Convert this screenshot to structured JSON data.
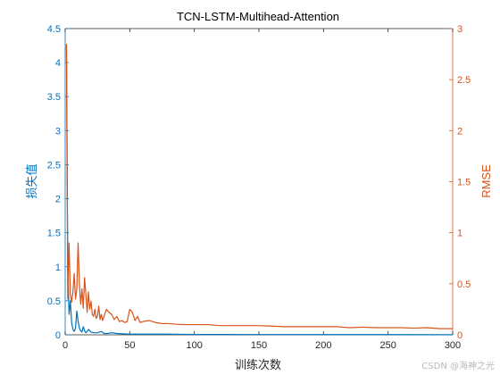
{
  "chart_data": {
    "type": "line",
    "title": "TCN-LSTM-Multihead-Attention",
    "xlabel": "训练次数",
    "ylabel_left": "损失值",
    "ylabel_right": "RMSE",
    "xlim": [
      0,
      300
    ],
    "ylim_left": [
      0,
      4.5
    ],
    "ylim_right": [
      0,
      3
    ],
    "x_ticks": [
      "0",
      "50",
      "100",
      "150",
      "200",
      "250",
      "300"
    ],
    "y_left_ticks": [
      "0",
      "0.5",
      "1",
      "1.5",
      "2",
      "2.5",
      "3",
      "3.5",
      "4",
      "4.5"
    ],
    "y_right_ticks": [
      "0",
      "0.5",
      "1",
      "1.5",
      "2",
      "2.5",
      "3"
    ],
    "grid": false,
    "colors": {
      "left": "#0072BD",
      "right": "#D95319",
      "axis": "#262626"
    },
    "series": [
      {
        "axis": "left",
        "x": [
          1,
          2,
          3,
          4,
          5,
          6,
          7,
          8,
          9,
          10,
          11,
          12,
          13,
          14,
          15,
          16,
          17,
          18,
          20,
          22,
          25,
          28,
          30,
          33,
          36,
          40,
          45,
          50,
          60,
          80,
          100,
          150,
          200,
          250,
          300
        ],
        "values": [
          4.25,
          1.0,
          0.3,
          0.5,
          0.18,
          0.08,
          0.05,
          0.1,
          0.35,
          0.2,
          0.1,
          0.06,
          0.04,
          0.12,
          0.06,
          0.03,
          0.05,
          0.08,
          0.04,
          0.03,
          0.03,
          0.05,
          0.02,
          0.02,
          0.03,
          0.02,
          0.015,
          0.01,
          0.01,
          0.01,
          0.005,
          0.004,
          0.003,
          0.003,
          0.002
        ]
      },
      {
        "axis": "right",
        "x": [
          1,
          2,
          3,
          4,
          5,
          6,
          7,
          8,
          9,
          10,
          11,
          12,
          13,
          14,
          15,
          16,
          17,
          18,
          19,
          20,
          21,
          22,
          23,
          24,
          25,
          26,
          27,
          28,
          29,
          30,
          32,
          34,
          36,
          38,
          40,
          42,
          44,
          46,
          48,
          50,
          52,
          54,
          56,
          58,
          60,
          65,
          70,
          75,
          80,
          90,
          100,
          110,
          120,
          130,
          140,
          150,
          160,
          170,
          180,
          190,
          200,
          210,
          220,
          230,
          240,
          250,
          260,
          270,
          280,
          290,
          300
        ],
        "values": [
          2.85,
          0.35,
          0.9,
          0.4,
          0.32,
          0.42,
          0.6,
          0.35,
          0.45,
          0.9,
          0.5,
          0.3,
          0.45,
          0.26,
          0.56,
          0.4,
          0.22,
          0.42,
          0.25,
          0.33,
          0.2,
          0.18,
          0.25,
          0.16,
          0.18,
          0.28,
          0.15,
          0.2,
          0.14,
          0.18,
          0.25,
          0.22,
          0.2,
          0.15,
          0.18,
          0.13,
          0.14,
          0.12,
          0.13,
          0.25,
          0.22,
          0.14,
          0.18,
          0.12,
          0.13,
          0.14,
          0.12,
          0.11,
          0.11,
          0.1,
          0.1,
          0.1,
          0.09,
          0.09,
          0.09,
          0.09,
          0.085,
          0.08,
          0.08,
          0.08,
          0.08,
          0.08,
          0.07,
          0.075,
          0.07,
          0.07,
          0.07,
          0.065,
          0.07,
          0.06,
          0.06
        ]
      }
    ]
  },
  "watermark": "CSDN @海神之光"
}
